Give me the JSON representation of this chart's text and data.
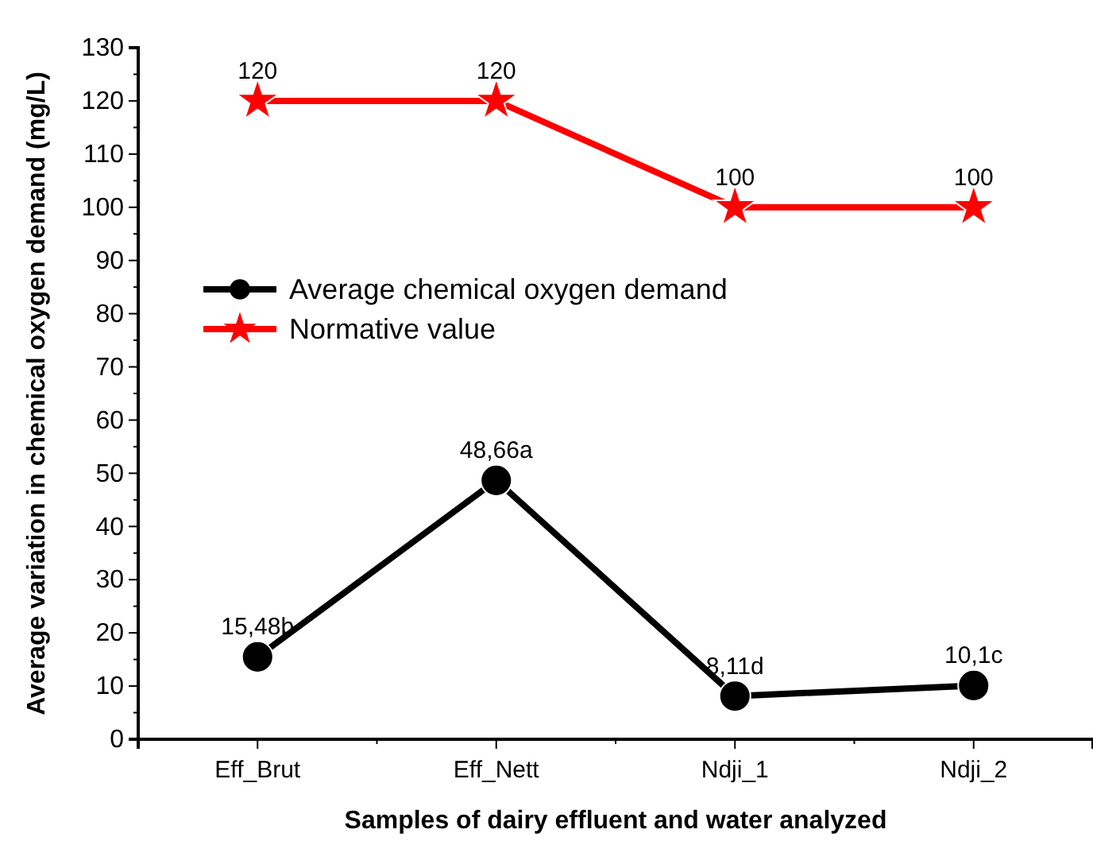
{
  "chart_data": {
    "type": "line",
    "xlabel": "Samples of dairy effluent and water analyzed",
    "ylabel": "Average variation in chemical oxygen demand (mg/L)",
    "categories": [
      "Eff_Brut",
      "Eff_Nett",
      "Ndji_1",
      "Ndji_2"
    ],
    "series": [
      {
        "name": "Average chemical oxygen demand",
        "color": "#000000",
        "marker": "circle",
        "values": [
          15.48,
          48.66,
          8.11,
          10.1
        ],
        "value_labels": [
          "15,48b",
          "48,66a",
          "8,11d",
          "10,1c"
        ]
      },
      {
        "name": "Normative value",
        "color": "#ff0000",
        "marker": "star",
        "values": [
          120,
          120,
          100,
          100
        ],
        "value_labels": [
          "120",
          "120",
          "100",
          "100"
        ]
      }
    ],
    "ylim": [
      0,
      130
    ],
    "yticks": [
      0,
      10,
      20,
      30,
      40,
      50,
      60,
      70,
      80,
      90,
      100,
      110,
      120,
      130
    ],
    "grid": false,
    "legend": "left",
    "line_style": "solid"
  }
}
